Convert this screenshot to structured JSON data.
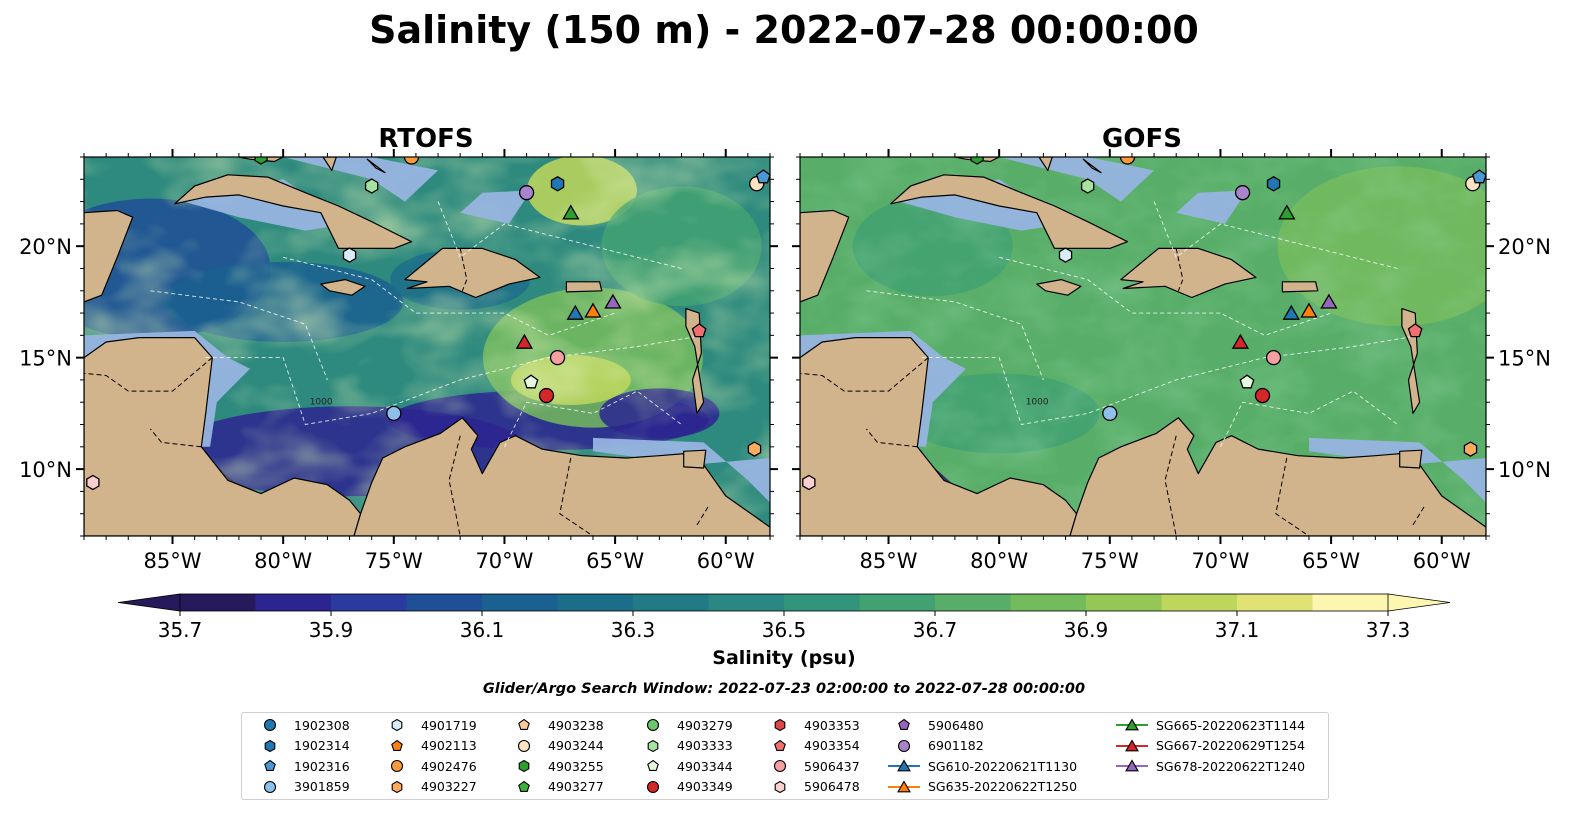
{
  "title": "Salinity (150 m) - 2022-07-28 00:00:00",
  "colors": {
    "land": "#d1b48c",
    "shelf": "#97b4e0",
    "scale": [
      "#271a5c",
      "#2c2590",
      "#2a3a9e",
      "#1f4f96",
      "#1a6090",
      "#1c6d8a",
      "#227a86",
      "#2a8782",
      "#33947c",
      "#42a172",
      "#58ae68",
      "#74bb5d",
      "#94c756",
      "#bed65b",
      "#e0e374",
      "#fdf6b1"
    ]
  },
  "colorbar": {
    "label": "Salinity (psu)",
    "ticks": [
      "35.7",
      "35.9",
      "36.1",
      "36.3",
      "36.5",
      "36.7",
      "36.9",
      "37.1",
      "37.3"
    ]
  },
  "search_window": "Glider/Argo Search Window: 2022-07-23 02:00:00 to 2022-07-28 00:00:00",
  "panels": [
    {
      "title": "RTOFS",
      "model": "rtofs"
    },
    {
      "title": "GOFS",
      "model": "gofs"
    }
  ],
  "axes": {
    "x_ticks": [
      "85°W",
      "80°W",
      "75°W",
      "70°W",
      "65°W",
      "60°W"
    ],
    "y_ticks": [
      "20°N",
      "15°N",
      "10°N"
    ],
    "lon_range": [
      -89,
      -58
    ],
    "lat_range": [
      7,
      24
    ]
  },
  "contour_label": "1000",
  "legend": [
    {
      "name": "1902308",
      "marker": "circle",
      "color": "#1f77b4"
    },
    {
      "name": "1902314",
      "marker": "hexagon",
      "color": "#1f77b4"
    },
    {
      "name": "1902316",
      "marker": "pentagon",
      "color": "#4a98d6"
    },
    {
      "name": "3901859",
      "marker": "circle",
      "color": "#8ec1ea"
    },
    {
      "name": "4901719",
      "marker": "hexagon",
      "color": "#d8ecfa"
    },
    {
      "name": "4902113",
      "marker": "pentagon",
      "color": "#ff7f0e"
    },
    {
      "name": "4902476",
      "marker": "circle",
      "color": "#ff9a3c"
    },
    {
      "name": "4903227",
      "marker": "hexagon",
      "color": "#ffab5e"
    },
    {
      "name": "4903238",
      "marker": "pentagon",
      "color": "#ffcc99"
    },
    {
      "name": "4903244",
      "marker": "circle",
      "color": "#ffe4c4"
    },
    {
      "name": "4903255",
      "marker": "hexagon",
      "color": "#2ca02c"
    },
    {
      "name": "4903277",
      "marker": "pentagon",
      "color": "#3cb33c"
    },
    {
      "name": "4903279",
      "marker": "circle",
      "color": "#6cc66c"
    },
    {
      "name": "4903333",
      "marker": "hexagon",
      "color": "#a6e3a0"
    },
    {
      "name": "4903344",
      "marker": "pentagon",
      "color": "#e4f8df"
    },
    {
      "name": "4903349",
      "marker": "circle",
      "color": "#d62728"
    },
    {
      "name": "4903353",
      "marker": "hexagon",
      "color": "#e0454a"
    },
    {
      "name": "4903354",
      "marker": "pentagon",
      "color": "#f07070"
    },
    {
      "name": "5906437",
      "marker": "circle",
      "color": "#f5a0a0"
    },
    {
      "name": "5906478",
      "marker": "hexagon",
      "color": "#fcd0d0"
    },
    {
      "name": "5906480",
      "marker": "pentagon",
      "color": "#9467bd"
    },
    {
      "name": "6901182",
      "marker": "circle",
      "color": "#a884cc"
    },
    {
      "name": "SG610-20220621T1130",
      "marker": "triangle",
      "color": "#1f77b4",
      "line": true
    },
    {
      "name": "SG635-20220622T1250",
      "marker": "triangle",
      "color": "#ff7f0e",
      "line": true
    },
    {
      "name": "SG665-20220623T1144",
      "marker": "triangle",
      "color": "#2ca02c",
      "line": true
    },
    {
      "name": "SG667-20220629T1254",
      "marker": "triangle",
      "color": "#d62728",
      "line": true
    },
    {
      "name": "SG678-20220622T1240",
      "marker": "triangle",
      "color": "#9467bd",
      "line": true
    }
  ],
  "observations": [
    {
      "id": "4901719",
      "lon": -77.0,
      "lat": 19.6
    },
    {
      "id": "4903333",
      "lon": -76.0,
      "lat": 22.7
    },
    {
      "id": "6901182",
      "lon": -69.0,
      "lat": 22.4
    },
    {
      "id": "1902314",
      "lon": -67.6,
      "lat": 22.8
    },
    {
      "id": "SG665-20220623T1144",
      "lon": -67.0,
      "lat": 21.5
    },
    {
      "id": "4903244",
      "lon": -58.6,
      "lat": 22.8
    },
    {
      "id": "1902316",
      "lon": -58.3,
      "lat": 23.1
    },
    {
      "id": "SG610-20220621T1130",
      "lon": -66.8,
      "lat": 17.0
    },
    {
      "id": "SG635-20220622T1250",
      "lon": -66.0,
      "lat": 17.1
    },
    {
      "id": "SG678-20220622T1240",
      "lon": -65.1,
      "lat": 17.5
    },
    {
      "id": "SG667-20220629T1254",
      "lon": -69.1,
      "lat": 15.7
    },
    {
      "id": "5906437",
      "lon": -67.6,
      "lat": 15.0
    },
    {
      "id": "4903344",
      "lon": -68.8,
      "lat": 13.9
    },
    {
      "id": "4903349",
      "lon": -68.1,
      "lat": 13.3
    },
    {
      "id": "3901859",
      "lon": -75.0,
      "lat": 12.5
    },
    {
      "id": "4903227",
      "lon": -58.7,
      "lat": 10.9
    },
    {
      "id": "4903354",
      "lon": -61.2,
      "lat": 16.2
    },
    {
      "id": "5906478",
      "lon": -88.6,
      "lat": 9.4
    },
    {
      "id": "4903255",
      "lon": -81.0,
      "lat": 24.0
    },
    {
      "id": "4902476",
      "lon": -74.2,
      "lat": 24.0
    }
  ]
}
